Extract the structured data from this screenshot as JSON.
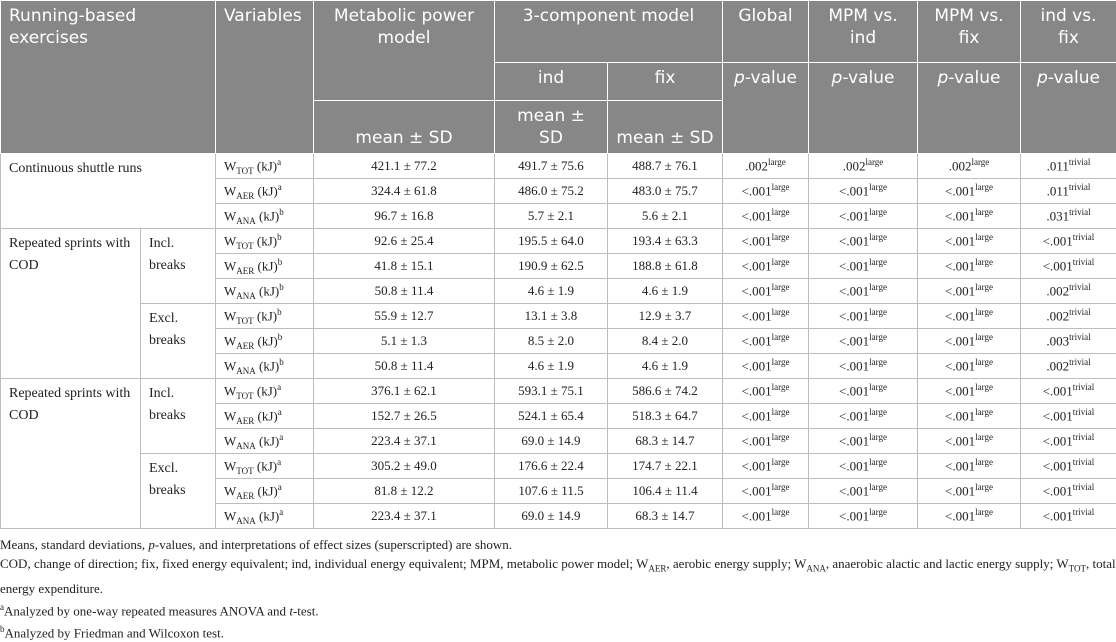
{
  "header": {
    "exercise": "Running-based exercises",
    "variables": "Variables",
    "mpm": "Metabolic power model",
    "three_component": "3-component model",
    "ind": "ind",
    "fix": "fix",
    "mean_sd": [
      "mean ± SD",
      "mean ± SD",
      "mean ± SD"
    ],
    "comparisons": [
      {
        "label": "Global",
        "p": "p",
        "rest": "-value"
      },
      {
        "label": "MPM vs. ind",
        "p": "p",
        "rest": "-value"
      },
      {
        "label": "MPM vs. fix",
        "p": "p",
        "rest": "-value"
      },
      {
        "label": "ind vs. fix",
        "p": "p",
        "rest": "-value"
      }
    ]
  },
  "groups": [
    {
      "exercise": "Continuous shuttle runs",
      "subgroups": [
        {
          "rows": [
            {
              "variable": {
                "symbol": "W",
                "sub": "TOT",
                "unit": "(kJ)",
                "note": "a"
              },
              "mpm": "421.1 ± 77.2",
              "ind": "491.7 ± 75.6",
              "fix": "488.7 ± 76.1",
              "p": [
                {
                  "value": ".002",
                  "effect": "large"
                },
                {
                  "value": ".002",
                  "effect": "large"
                },
                {
                  "value": ".002",
                  "effect": "large"
                },
                {
                  "value": ".011",
                  "effect": "trivial"
                }
              ]
            },
            {
              "variable": {
                "symbol": "W",
                "sub": "AER",
                "unit": "(kJ)",
                "note": "a"
              },
              "mpm": "324.4 ± 61.8",
              "ind": "486.0 ± 75.2",
              "fix": "483.0 ± 75.7",
              "p": [
                {
                  "value": "<.001",
                  "effect": "large"
                },
                {
                  "value": "<.001",
                  "effect": "large"
                },
                {
                  "value": "<.001",
                  "effect": "large"
                },
                {
                  "value": ".011",
                  "effect": "trivial"
                }
              ]
            },
            {
              "variable": {
                "symbol": "W",
                "sub": "ANA",
                "unit": "(kJ)",
                "note": "b"
              },
              "mpm": "96.7 ± 16.8",
              "ind": "5.7 ± 2.1",
              "fix": "5.6 ± 2.1",
              "p": [
                {
                  "value": "<.001",
                  "effect": "large"
                },
                {
                  "value": "<.001",
                  "effect": "large"
                },
                {
                  "value": "<.001",
                  "effect": "large"
                },
                {
                  "value": ".031",
                  "effect": "trivial"
                }
              ]
            }
          ]
        }
      ]
    },
    {
      "exercise": "Repeated sprints with COD",
      "subgroups": [
        {
          "label": "Incl. breaks",
          "rows": [
            {
              "variable": {
                "symbol": "W",
                "sub": "TOT",
                "unit": "(kJ)",
                "note": "b"
              },
              "mpm": "92.6 ± 25.4",
              "ind": "195.5 ± 64.0",
              "fix": "193.4 ± 63.3",
              "p": [
                {
                  "value": "<.001",
                  "effect": "large"
                },
                {
                  "value": "<.001",
                  "effect": "large"
                },
                {
                  "value": "<.001",
                  "effect": "large"
                },
                {
                  "value": "<.001",
                  "effect": "trivial"
                }
              ]
            },
            {
              "variable": {
                "symbol": "W",
                "sub": "AER",
                "unit": "(kJ)",
                "note": "b"
              },
              "mpm": "41.8 ± 15.1",
              "ind": "190.9 ± 62.5",
              "fix": "188.8 ± 61.8",
              "p": [
                {
                  "value": "<.001",
                  "effect": "large"
                },
                {
                  "value": "<.001",
                  "effect": "large"
                },
                {
                  "value": "<.001",
                  "effect": "large"
                },
                {
                  "value": "<.001",
                  "effect": "trivial"
                }
              ]
            },
            {
              "variable": {
                "symbol": "W",
                "sub": "ANA",
                "unit": "(kJ)",
                "note": "b"
              },
              "mpm": "50.8 ± 11.4",
              "ind": "4.6 ± 1.9",
              "fix": "4.6 ± 1.9",
              "p": [
                {
                  "value": "<.001",
                  "effect": "large"
                },
                {
                  "value": "<.001",
                  "effect": "large"
                },
                {
                  "value": "<.001",
                  "effect": "large"
                },
                {
                  "value": ".002",
                  "effect": "trivial"
                }
              ]
            }
          ]
        },
        {
          "label": "Excl. breaks",
          "rows": [
            {
              "variable": {
                "symbol": "W",
                "sub": "TOT",
                "unit": "(kJ)",
                "note": "b"
              },
              "mpm": "55.9 ± 12.7",
              "ind": "13.1 ± 3.8",
              "fix": "12.9 ± 3.7",
              "p": [
                {
                  "value": "<.001",
                  "effect": "large"
                },
                {
                  "value": "<.001",
                  "effect": "large"
                },
                {
                  "value": "<.001",
                  "effect": "large"
                },
                {
                  "value": ".002",
                  "effect": "trivial"
                }
              ]
            },
            {
              "variable": {
                "symbol": "W",
                "sub": "AER",
                "unit": "(kJ)",
                "note": "b"
              },
              "mpm": "5.1 ± 1.3",
              "ind": "8.5 ± 2.0",
              "fix": "8.4 ± 2.0",
              "p": [
                {
                  "value": "<.001",
                  "effect": "large"
                },
                {
                  "value": "<.001",
                  "effect": "large"
                },
                {
                  "value": "<.001",
                  "effect": "large"
                },
                {
                  "value": ".003",
                  "effect": "trivial"
                }
              ]
            },
            {
              "variable": {
                "symbol": "W",
                "sub": "ANA",
                "unit": "(kJ)",
                "note": "b"
              },
              "mpm": "50.8 ± 11.4",
              "ind": "4.6 ± 1.9",
              "fix": "4.6 ± 1.9",
              "p": [
                {
                  "value": "<.001",
                  "effect": "large"
                },
                {
                  "value": "<.001",
                  "effect": "large"
                },
                {
                  "value": "<.001",
                  "effect": "large"
                },
                {
                  "value": ".002",
                  "effect": "trivial"
                }
              ]
            }
          ]
        }
      ]
    },
    {
      "exercise": "Repeated sprints with COD",
      "subgroups": [
        {
          "label": "Incl. breaks",
          "rows": [
            {
              "variable": {
                "symbol": "W",
                "sub": "TOT",
                "unit": "(kJ)",
                "note": "a"
              },
              "mpm": "376.1 ± 62.1",
              "ind": "593.1 ± 75.1",
              "fix": "586.6 ± 74.2",
              "p": [
                {
                  "value": "<.001",
                  "effect": "large"
                },
                {
                  "value": "<.001",
                  "effect": "large"
                },
                {
                  "value": "<.001",
                  "effect": "large"
                },
                {
                  "value": "<.001",
                  "effect": "trivial"
                }
              ]
            },
            {
              "variable": {
                "symbol": "W",
                "sub": "AER",
                "unit": "(kJ)",
                "note": "a"
              },
              "mpm": "152.7 ± 26.5",
              "ind": "524.1 ± 65.4",
              "fix": "518.3 ± 64.7",
              "p": [
                {
                  "value": "<.001",
                  "effect": "large"
                },
                {
                  "value": "<.001",
                  "effect": "large"
                },
                {
                  "value": "<.001",
                  "effect": "large"
                },
                {
                  "value": "<.001",
                  "effect": "trivial"
                }
              ]
            },
            {
              "variable": {
                "symbol": "W",
                "sub": "ANA",
                "unit": "(kJ)",
                "note": "a"
              },
              "mpm": "223.4 ± 37.1",
              "ind": "69.0 ± 14.9",
              "fix": "68.3 ± 14.7",
              "p": [
                {
                  "value": "<.001",
                  "effect": "large"
                },
                {
                  "value": "<.001",
                  "effect": "large"
                },
                {
                  "value": "<.001",
                  "effect": "large"
                },
                {
                  "value": "<.001",
                  "effect": "trivial"
                }
              ]
            }
          ]
        },
        {
          "label": "Excl. breaks",
          "rows": [
            {
              "variable": {
                "symbol": "W",
                "sub": "TOT",
                "unit": "(kJ)",
                "note": "a"
              },
              "mpm": "305.2 ± 49.0",
              "ind": "176.6 ± 22.4",
              "fix": "174.7 ± 22.1",
              "p": [
                {
                  "value": "<.001",
                  "effect": "large"
                },
                {
                  "value": "<.001",
                  "effect": "large"
                },
                {
                  "value": "<.001",
                  "effect": "large"
                },
                {
                  "value": "<.001",
                  "effect": "trivial"
                }
              ]
            },
            {
              "variable": {
                "symbol": "W",
                "sub": "AER",
                "unit": "(kJ)",
                "note": "a"
              },
              "mpm": "81.8 ± 12.2",
              "ind": "107.6 ± 11.5",
              "fix": "106.4 ± 11.4",
              "p": [
                {
                  "value": "<.001",
                  "effect": "large"
                },
                {
                  "value": "<.001",
                  "effect": "large"
                },
                {
                  "value": "<.001",
                  "effect": "large"
                },
                {
                  "value": "<.001",
                  "effect": "trivial"
                }
              ]
            },
            {
              "variable": {
                "symbol": "W",
                "sub": "ANA",
                "unit": "(kJ)",
                "note": "a"
              },
              "mpm": "223.4 ± 37.1",
              "ind": "69.0 ± 14.9",
              "fix": "68.3 ± 14.7",
              "p": [
                {
                  "value": "<.001",
                  "effect": "large"
                },
                {
                  "value": "<.001",
                  "effect": "large"
                },
                {
                  "value": "<.001",
                  "effect": "large"
                },
                {
                  "value": "<.001",
                  "effect": "trivial"
                }
              ]
            }
          ]
        }
      ]
    }
  ],
  "footnotes": [
    [
      {
        "text": "Means, standard deviations, "
      },
      {
        "text": "p",
        "style": "italic"
      },
      {
        "text": "-values, and interpretations of effect sizes (superscripted) are shown."
      }
    ],
    [
      {
        "text": "COD, change of direction; fix, fixed energy equivalent; ind, individual energy equivalent; MPM, metabolic power model; W"
      },
      {
        "text": "AER",
        "style": "sub"
      },
      {
        "text": ", aerobic energy supply; W"
      },
      {
        "text": "ANA",
        "style": "sub"
      },
      {
        "text": ", anaerobic alactic and lactic energy supply; W"
      },
      {
        "text": "TOT",
        "style": "sub"
      },
      {
        "text": ", total energy expenditure."
      }
    ],
    [
      {
        "text": "a",
        "style": "sup"
      },
      {
        "text": "Analyzed by one-way repeated measures ANOVA and "
      },
      {
        "text": "t",
        "style": "italic"
      },
      {
        "text": "-test."
      }
    ],
    [
      {
        "text": "b",
        "style": "sup"
      },
      {
        "text": "Analyzed by Friedman and Wilcoxon test."
      }
    ]
  ]
}
